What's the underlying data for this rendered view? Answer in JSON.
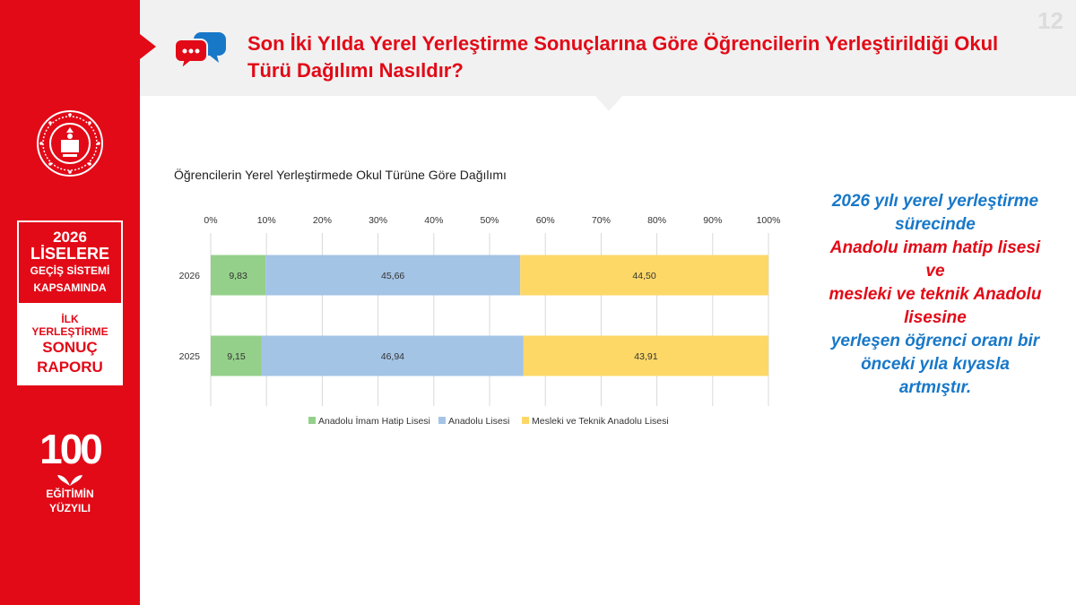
{
  "header": {
    "title": "Son İki Yılda Yerel Yerleştirme Sonuçlarına Göre Öğrencilerin Yerleştirildiği Okul Türü Dağılımı Nasıldır?",
    "page_number": "12",
    "icon": "speech-bubbles-icon"
  },
  "sidebar": {
    "seal_icon": "ministry-seal-icon",
    "report_box": {
      "year": "2026",
      "line1": "LİSELERE",
      "line2": "GEÇİŞ SİSTEMİ",
      "line3": "KAPSAMINDA",
      "line4": "İLK",
      "line5": "YERLEŞTİRME",
      "line6": "SONUÇ",
      "line7": "RAPORU"
    },
    "logo": {
      "number": "100",
      "line1": "EĞİTİMİN",
      "line2": "YÜZYILI"
    }
  },
  "summary": {
    "p1": "2026 yılı yerel yerleştirme sürecinde",
    "p2": "Anadolu imam hatip lisesi",
    "p3": "ve",
    "p4": "mesleki ve teknik Anadolu lisesine",
    "p5": "yerleşen öğrenci oranı bir önceki yıla kıyasla artmıştır."
  },
  "colors": {
    "brand_red": "#e20a17",
    "summary_blue": "#1878c8",
    "series_imam_hatip": "#94d08a",
    "series_anadolu": "#a4c4e6",
    "series_mesleki": "#fdd867"
  },
  "chart_data": {
    "type": "bar",
    "orientation": "horizontal",
    "stacked": true,
    "title": "Öğrencilerin Yerel Yerleştirmede Okul Türüne Göre Dağılımı",
    "categories": [
      "2026",
      "2025"
    ],
    "series": [
      {
        "name": "Anadolu İmam Hatip Lisesi",
        "values": [
          9.83,
          9.15
        ],
        "labels": [
          "9,83",
          "9,15"
        ],
        "color": "#94d08a"
      },
      {
        "name": "Anadolu Lisesi",
        "values": [
          45.66,
          46.94
        ],
        "labels": [
          "45,66",
          "46,94"
        ],
        "color": "#a4c4e6"
      },
      {
        "name": "Mesleki ve Teknik Anadolu Lisesi",
        "values": [
          44.5,
          43.91
        ],
        "labels": [
          "44,50",
          "43,91"
        ],
        "color": "#fdd867"
      }
    ],
    "xlim": [
      0,
      100
    ],
    "xticks": [
      "0%",
      "10%",
      "20%",
      "30%",
      "40%",
      "50%",
      "60%",
      "70%",
      "80%",
      "90%",
      "100%"
    ],
    "xaxis_position": "top",
    "grid": true,
    "legend": "bottom"
  }
}
